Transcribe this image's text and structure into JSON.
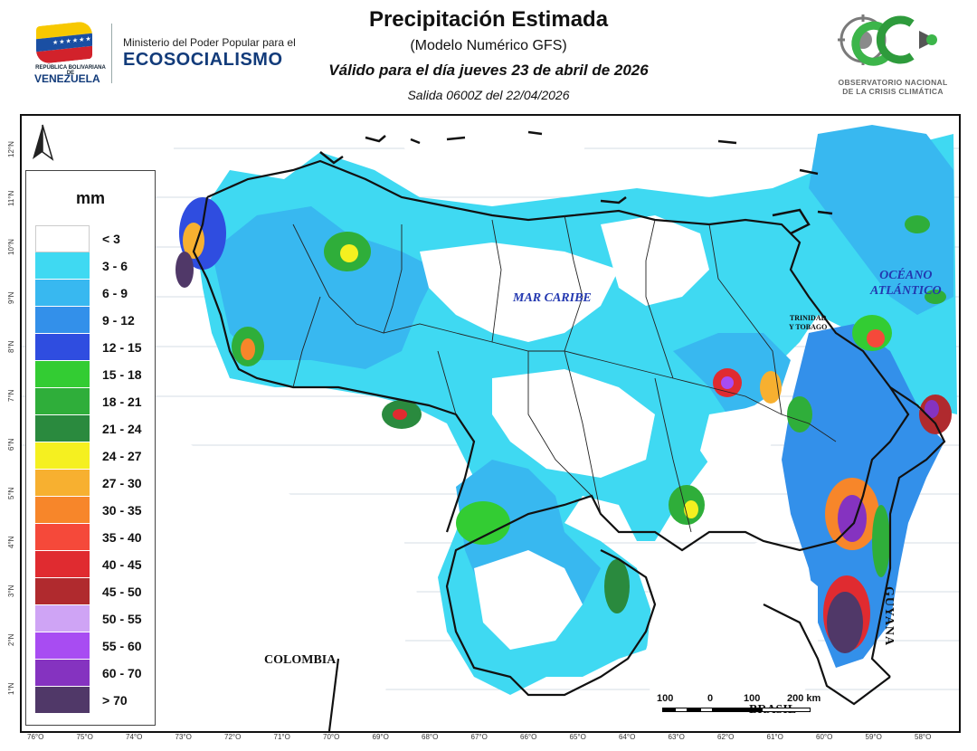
{
  "header": {
    "title": "Precipitación Estimada",
    "subtitle": "(Modelo Numérico GFS)",
    "valid_line": "Válido para el día jueves 23 de abril de 2026",
    "run_line": "Salida 0600Z del 22/04/2026",
    "left_logo": {
      "republic_text": "REPÚBLICA BOLIVARIANA DE",
      "country_text": "VENEZUELA",
      "ministry_line": "Ministerio del Poder Popular para el",
      "ministry_name": "ECOSOCIALISMO",
      "icon": "venezuela-flag-icon"
    },
    "right_logo": {
      "org_line1": "OBSERVATORIO NACIONAL",
      "org_line2": "DE LA CRISIS CLIMÁTICA",
      "icon": "occ-logo-icon"
    }
  },
  "legend": {
    "unit": "mm",
    "classes": [
      {
        "label": "< 3",
        "color": "#ffffff"
      },
      {
        "label": "3 - 6",
        "color": "#3fd9f2"
      },
      {
        "label": "6 - 9",
        "color": "#38b8f0"
      },
      {
        "label": "9 - 12",
        "color": "#3390ea"
      },
      {
        "label": "12 - 15",
        "color": "#2f4de0"
      },
      {
        "label": "15 - 18",
        "color": "#33cc33"
      },
      {
        "label": "18 - 21",
        "color": "#2fae3a"
      },
      {
        "label": "21 - 24",
        "color": "#2a8a3e"
      },
      {
        "label": "24 - 27",
        "color": "#f5f020"
      },
      {
        "label": "27 - 30",
        "color": "#f7b030"
      },
      {
        "label": "30 - 35",
        "color": "#f7862a"
      },
      {
        "label": "35 - 40",
        "color": "#f5493a"
      },
      {
        "label": "40 - 45",
        "color": "#e02b30"
      },
      {
        "label": "45 - 50",
        "color": "#b02a2e"
      },
      {
        "label": "50 - 55",
        "color": "#cfa4f5"
      },
      {
        "label": "55 - 60",
        "color": "#a84cf2"
      },
      {
        "label": "60 - 70",
        "color": "#8533c0"
      },
      {
        "label": "> 70",
        "color": "#503868"
      }
    ]
  },
  "map_labels": {
    "sea": "MAR CARIBE",
    "ocean_line1": "OCÉANO",
    "ocean_line2": "ATLÁNTICO",
    "trinidad_line1": "TRINIDAD",
    "trinidad_line2": "Y TOBAGO",
    "colombia": "COLOMBIA",
    "brasil": "BRASIL",
    "guyana": "GUYANA"
  },
  "scale_bar": {
    "labels": [
      "100",
      "0",
      "100",
      "200 km"
    ]
  },
  "longitude_ticks": [
    "76°O",
    "75°O",
    "74°O",
    "73°O",
    "72°O",
    "71°O",
    "70°O",
    "69°O",
    "68°O",
    "67°O",
    "66°O",
    "65°O",
    "64°O",
    "63°O",
    "62°O",
    "61°O",
    "60°O",
    "59°O",
    "58°O"
  ],
  "latitude_ticks": [
    "12°N",
    "11°N",
    "10°N",
    "9°N",
    "8°N",
    "7°N",
    "6°N",
    "5°N",
    "4°N",
    "3°N",
    "2°N",
    "1°N"
  ],
  "north_arrow_icon": "north-arrow-icon"
}
